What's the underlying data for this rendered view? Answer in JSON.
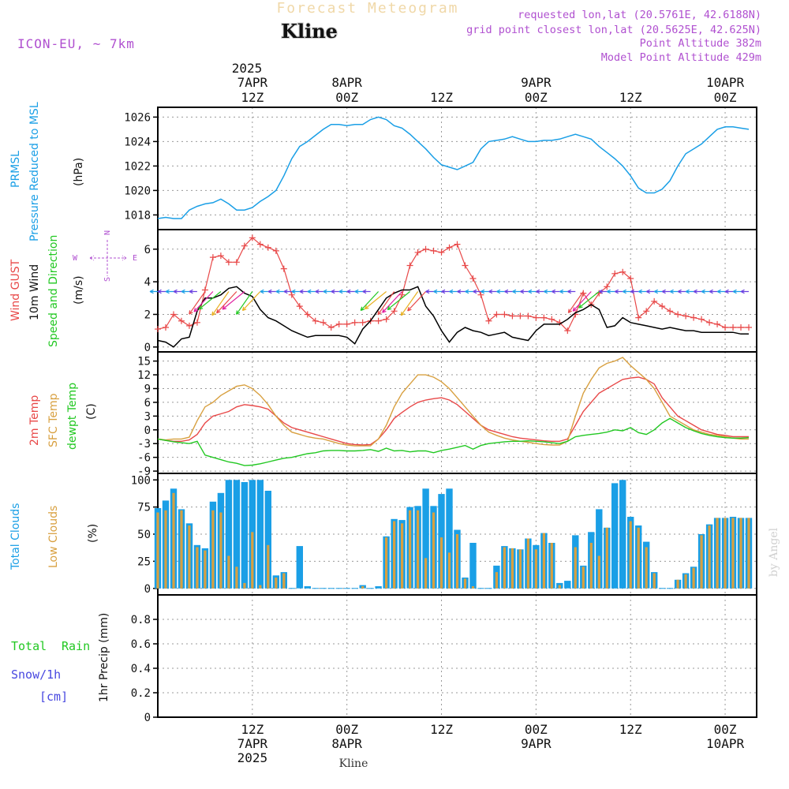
{
  "header": {
    "title": "Forecast Meteogram",
    "location": "Kline",
    "model": "ICON-EU, ~ 7km",
    "requested": "requested lon,lat (20.5761E, 42.6188N)",
    "grid_point": "grid point closest lon,lat (20.5625E, 42.625N)",
    "point_altitude": "Point Altitude 382m",
    "model_altitude": "Model Point Altitude 429m",
    "footer_location": "Kline",
    "watermark": "by Angel"
  },
  "time_axis": {
    "year_label": "2025",
    "top_labels": [
      {
        "hour": 12,
        "day": "7APR",
        "time": "12Z"
      },
      {
        "hour": 24,
        "day": "8APR",
        "time": "00Z"
      },
      {
        "hour": 36,
        "day": "",
        "time": "12Z"
      },
      {
        "hour": 48,
        "day": "9APR",
        "time": "00Z"
      },
      {
        "hour": 60,
        "day": "",
        "time": "12Z"
      },
      {
        "hour": 72,
        "day": "10APR",
        "time": "00Z"
      }
    ],
    "bottom_labels": [
      {
        "hour": 12,
        "time": "12Z",
        "day": "7APR",
        "year": "2025"
      },
      {
        "hour": 24,
        "time": "00Z",
        "day": "8APR",
        "year": ""
      },
      {
        "hour": 36,
        "time": "12Z",
        "day": "",
        "year": ""
      },
      {
        "hour": 48,
        "time": "00Z",
        "day": "9APR",
        "year": ""
      },
      {
        "hour": 60,
        "time": "12Z",
        "day": "",
        "year": ""
      },
      {
        "hour": 72,
        "time": "00Z",
        "day": "10APR",
        "year": ""
      }
    ],
    "xlim": [
      0,
      76
    ]
  },
  "panel_labels": {
    "pressure": {
      "line1": "PRMSL",
      "line2": "Pressure Reduced to MSL",
      "unit": "(hPa)"
    },
    "wind": {
      "line1": "Wind GUST",
      "line2": "10m Wind",
      "line3": "Speed and Direction",
      "unit": "(m/s)",
      "compass_n": "N",
      "compass_s": "S",
      "compass_w": "W",
      "compass_e": "E"
    },
    "temp": {
      "line1": "2m Temp",
      "line2": "SFC Temp",
      "line3": "dewpt Temp",
      "unit": "(C)"
    },
    "clouds": {
      "line1": "Total Clouds",
      "line2": "Low Clouds",
      "unit": "(%)"
    },
    "precip": {
      "total": "Total",
      "rain": "Rain",
      "snow": "Snow/1h",
      "snow_unit": "[cm]",
      "axis": "1hr Precip (mm)"
    }
  },
  "colors": {
    "pressure": "#1a9fe6",
    "gust": "#e84848",
    "wind": "#000000",
    "dir": "#22c822",
    "temp2m": "#e84848",
    "sfc": "#d8a040",
    "dewpt": "#22c822",
    "total_clouds": "#1a9fe6",
    "low_clouds": "#d8a040",
    "title": "#f0d8a8",
    "meta": "#b050d0",
    "snow": "#4848e0"
  },
  "chart_data": [
    {
      "type": "line",
      "title": "PRMSL Pressure Reduced to MSL",
      "ylabel": "(hPa)",
      "ylim": [
        1016.8,
        1026.8
      ],
      "yticks": [
        1018,
        1020,
        1022,
        1024,
        1026
      ],
      "x": [
        0,
        1,
        2,
        3,
        4,
        5,
        6,
        7,
        8,
        9,
        10,
        11,
        12,
        13,
        14,
        15,
        16,
        17,
        18,
        19,
        20,
        21,
        22,
        23,
        24,
        25,
        26,
        27,
        28,
        29,
        30,
        31,
        32,
        33,
        34,
        35,
        36,
        37,
        38,
        39,
        40,
        41,
        42,
        43,
        44,
        45,
        46,
        47,
        48,
        49,
        50,
        51,
        52,
        53,
        54,
        55,
        56,
        57,
        58,
        59,
        60,
        61,
        62,
        63,
        64,
        65,
        66,
        67,
        68,
        69,
        70,
        71,
        72,
        73,
        74,
        75
      ],
      "series": [
        {
          "name": "PRMSL",
          "values": [
            1017.7,
            1017.8,
            1017.7,
            1017.7,
            1018.4,
            1018.7,
            1018.9,
            1019.0,
            1019.3,
            1018.9,
            1018.4,
            1018.4,
            1018.6,
            1019.1,
            1019.5,
            1020.0,
            1021.2,
            1022.6,
            1023.6,
            1024.0,
            1024.5,
            1025.0,
            1025.4,
            1025.4,
            1025.3,
            1025.4,
            1025.4,
            1025.8,
            1026.0,
            1025.8,
            1025.3,
            1025.1,
            1024.6,
            1024.0,
            1023.4,
            1022.7,
            1022.1,
            1021.9,
            1021.7,
            1022.0,
            1022.3,
            1023.4,
            1024.0,
            1024.1,
            1024.2,
            1024.4,
            1024.2,
            1024.0,
            1024.0,
            1024.1,
            1024.1,
            1024.2,
            1024.4,
            1024.6,
            1024.4,
            1024.2,
            1023.6,
            1023.1,
            1022.6,
            1022.0,
            1021.2,
            1020.2,
            1019.8,
            1019.8,
            1020.1,
            1020.8,
            1022.0,
            1023.0,
            1023.4,
            1023.8,
            1024.4,
            1025.0,
            1025.2,
            1025.2,
            1025.1,
            1025.0
          ]
        }
      ]
    },
    {
      "type": "line",
      "title": "Wind GUST / 10m Wind Speed and Direction",
      "ylabel": "(m/s)",
      "ylim": [
        -0.3,
        7.2
      ],
      "yticks": [
        0,
        2,
        4,
        6
      ],
      "x": [
        0,
        1,
        2,
        3,
        4,
        5,
        6,
        7,
        8,
        9,
        10,
        11,
        12,
        13,
        14,
        15,
        16,
        17,
        18,
        19,
        20,
        21,
        22,
        23,
        24,
        25,
        26,
        27,
        28,
        29,
        30,
        31,
        32,
        33,
        34,
        35,
        36,
        37,
        38,
        39,
        40,
        41,
        42,
        43,
        44,
        45,
        46,
        47,
        48,
        49,
        50,
        51,
        52,
        53,
        54,
        55,
        56,
        57,
        58,
        59,
        60,
        61,
        62,
        63,
        64,
        65,
        66,
        67,
        68,
        69,
        70,
        71,
        72,
        73,
        74,
        75
      ],
      "series": [
        {
          "name": "Wind GUST",
          "values": [
            1.1,
            1.2,
            2.0,
            1.6,
            1.3,
            1.5,
            3.5,
            5.5,
            5.6,
            5.2,
            5.2,
            6.2,
            6.7,
            6.3,
            6.1,
            5.9,
            4.8,
            3.2,
            2.5,
            2.0,
            1.6,
            1.5,
            1.2,
            1.4,
            1.4,
            1.5,
            1.5,
            1.6,
            1.6,
            1.7,
            2.2,
            3.2,
            5.0,
            5.8,
            6.0,
            5.9,
            5.8,
            6.1,
            6.3,
            5.0,
            4.2,
            3.2,
            1.6,
            2.0,
            2.0,
            1.9,
            1.9,
            1.9,
            1.8,
            1.8,
            1.7,
            1.5,
            1.0,
            2.0,
            3.3,
            2.6,
            3.3,
            3.7,
            4.5,
            4.6,
            4.2,
            1.8,
            2.2,
            2.8,
            2.5,
            2.2,
            2.0,
            1.9,
            1.8,
            1.7,
            1.5,
            1.4,
            1.2,
            1.2,
            1.2,
            1.2
          ]
        },
        {
          "name": "10m Wind",
          "values": [
            0.4,
            0.3,
            0.0,
            0.5,
            0.6,
            2.2,
            3.0,
            3.0,
            3.2,
            3.6,
            3.7,
            3.3,
            3.1,
            2.3,
            1.8,
            1.6,
            1.3,
            1.0,
            0.8,
            0.6,
            0.7,
            0.7,
            0.7,
            0.7,
            0.6,
            0.2,
            1.1,
            1.6,
            2.3,
            3.0,
            3.3,
            3.5,
            3.5,
            3.7,
            2.5,
            1.9,
            1.0,
            0.3,
            0.9,
            1.2,
            1.0,
            0.9,
            0.7,
            0.8,
            0.9,
            0.6,
            0.5,
            0.4,
            1.0,
            1.4,
            1.4,
            1.4,
            1.7,
            2.1,
            2.3,
            2.6,
            2.3,
            1.2,
            1.3,
            1.8,
            1.5,
            1.4,
            1.3,
            1.2,
            1.1,
            1.2,
            1.1,
            1.0,
            1.0,
            0.9,
            0.9,
            0.9,
            0.9,
            0.9,
            0.8,
            0.8
          ]
        }
      ]
    },
    {
      "type": "line",
      "title": "2m Temp / SFC Temp / dewpt Temp",
      "ylabel": "(C)",
      "ylim": [
        -9.5,
        17
      ],
      "yticks": [
        -9,
        -6,
        -3,
        0,
        3,
        6,
        9,
        12,
        15
      ],
      "x": [
        0,
        1,
        2,
        3,
        4,
        5,
        6,
        7,
        8,
        9,
        10,
        11,
        12,
        13,
        14,
        15,
        16,
        17,
        18,
        19,
        20,
        21,
        22,
        23,
        24,
        25,
        26,
        27,
        28,
        29,
        30,
        31,
        32,
        33,
        34,
        35,
        36,
        37,
        38,
        39,
        40,
        41,
        42,
        43,
        44,
        45,
        46,
        47,
        48,
        49,
        50,
        51,
        52,
        53,
        54,
        55,
        56,
        57,
        58,
        59,
        60,
        61,
        62,
        63,
        64,
        65,
        66,
        67,
        68,
        69,
        70,
        71,
        72,
        73,
        74,
        75
      ],
      "series": [
        {
          "name": "2m Temp",
          "values": [
            -2.0,
            -2.3,
            -2.5,
            -2.5,
            -2.2,
            -1.0,
            1.5,
            3.0,
            3.5,
            4.0,
            5.0,
            5.5,
            5.3,
            5.0,
            4.5,
            3.0,
            1.5,
            0.5,
            0.0,
            -0.5,
            -1.0,
            -1.5,
            -2.0,
            -2.5,
            -3.0,
            -3.2,
            -3.3,
            -3.2,
            -2.0,
            0.0,
            2.5,
            3.8,
            5.0,
            6.0,
            6.5,
            6.8,
            7.0,
            6.5,
            5.5,
            4.0,
            2.5,
            1.0,
            0.0,
            -0.5,
            -1.0,
            -1.5,
            -1.8,
            -2.0,
            -2.2,
            -2.4,
            -2.5,
            -2.5,
            -2.0,
            1.0,
            4.0,
            6.0,
            8.0,
            9.0,
            10.0,
            11.0,
            11.3,
            11.5,
            11.0,
            10.0,
            7.0,
            5.0,
            3.0,
            2.0,
            1.0,
            0.0,
            -0.5,
            -1.0,
            -1.2,
            -1.5,
            -1.5,
            -1.5
          ]
        },
        {
          "name": "SFC Temp",
          "values": [
            -2.0,
            -2.2,
            -2.0,
            -2.0,
            -1.6,
            2.0,
            5.0,
            6.0,
            7.5,
            8.5,
            9.5,
            9.8,
            9.0,
            7.5,
            5.5,
            3.0,
            1.0,
            -0.5,
            -1.0,
            -1.5,
            -1.8,
            -2.0,
            -2.5,
            -3.0,
            -3.3,
            -3.5,
            -3.5,
            -3.5,
            -2.0,
            1.0,
            5.0,
            8.0,
            10.0,
            12.0,
            12.0,
            11.5,
            10.5,
            9.0,
            7.0,
            5.0,
            3.0,
            1.0,
            -0.5,
            -1.2,
            -1.8,
            -2.2,
            -2.5,
            -2.7,
            -3.0,
            -3.2,
            -3.3,
            -3.3,
            -2.5,
            3.0,
            8.0,
            11.0,
            13.5,
            14.5,
            15.0,
            15.8,
            14.0,
            12.5,
            11.0,
            9.0,
            6.0,
            3.0,
            2.0,
            1.0,
            0.0,
            -0.5,
            -1.0,
            -1.2,
            -1.5,
            -1.8,
            -2.0,
            -2.0
          ]
        },
        {
          "name": "dewpt Temp",
          "values": [
            -2.0,
            -2.3,
            -2.6,
            -2.8,
            -3.0,
            -2.5,
            -5.5,
            -6.0,
            -6.5,
            -7.0,
            -7.3,
            -7.8,
            -7.7,
            -7.4,
            -7.0,
            -6.6,
            -6.2,
            -6.0,
            -5.6,
            -5.2,
            -5.0,
            -4.6,
            -4.5,
            -4.5,
            -4.6,
            -4.6,
            -4.5,
            -4.3,
            -4.7,
            -4.0,
            -4.6,
            -4.5,
            -4.8,
            -4.6,
            -4.6,
            -5.0,
            -4.5,
            -4.2,
            -3.8,
            -3.4,
            -4.2,
            -3.4,
            -3.0,
            -2.8,
            -2.6,
            -2.5,
            -2.5,
            -2.4,
            -2.5,
            -2.6,
            -2.8,
            -3.0,
            -2.5,
            -1.5,
            -1.2,
            -1.0,
            -0.8,
            -0.5,
            0.0,
            -0.2,
            0.5,
            -0.6,
            -1.0,
            0.0,
            1.5,
            2.5,
            1.5,
            0.5,
            -0.2,
            -0.8,
            -1.2,
            -1.5,
            -1.7,
            -1.8,
            -1.8,
            -1.7
          ]
        }
      ]
    },
    {
      "type": "bar",
      "title": "Total Clouds / Low Clouds",
      "ylabel": "(%)",
      "ylim": [
        -6,
        106
      ],
      "yticks": [
        0,
        25,
        50,
        75,
        100
      ],
      "x": [
        0,
        1,
        2,
        3,
        4,
        5,
        6,
        7,
        8,
        9,
        10,
        11,
        12,
        13,
        14,
        15,
        16,
        17,
        18,
        19,
        20,
        21,
        22,
        23,
        24,
        25,
        26,
        27,
        28,
        29,
        30,
        31,
        32,
        33,
        34,
        35,
        36,
        37,
        38,
        39,
        40,
        41,
        42,
        43,
        44,
        45,
        46,
        47,
        48,
        49,
        50,
        51,
        52,
        53,
        54,
        55,
        56,
        57,
        58,
        59,
        60,
        61,
        62,
        63,
        64,
        65,
        66,
        67,
        68,
        69,
        70,
        71,
        72,
        73,
        74,
        75
      ],
      "series": [
        {
          "name": "Total Clouds",
          "values": [
            74,
            81,
            92,
            73,
            60,
            40,
            37,
            80,
            88,
            100,
            100,
            98,
            100,
            100,
            90,
            12,
            15,
            0,
            39,
            2,
            0,
            0,
            0,
            0,
            0,
            0,
            3,
            0,
            2,
            48,
            64,
            63,
            75,
            76,
            92,
            76,
            87,
            92,
            54,
            10,
            42,
            0,
            0,
            21,
            39,
            37,
            36,
            46,
            40,
            51,
            42,
            5,
            7,
            49,
            21,
            52,
            73,
            56,
            97,
            100,
            66,
            58,
            43,
            15,
            0,
            0,
            8,
            14,
            20,
            50,
            59,
            65,
            65,
            66,
            65,
            65
          ]
        },
        {
          "name": "Low Clouds",
          "values": [
            70,
            72,
            88,
            72,
            58,
            38,
            35,
            72,
            70,
            30,
            20,
            5,
            52,
            3,
            40,
            10,
            14,
            0,
            0,
            0,
            0,
            0,
            0,
            0,
            0,
            0,
            2,
            0,
            0,
            47,
            62,
            60,
            72,
            72,
            28,
            70,
            47,
            33,
            50,
            9,
            2,
            0,
            0,
            15,
            38,
            37,
            36,
            46,
            36,
            51,
            42,
            3,
            0,
            38,
            20,
            42,
            30,
            56,
            0,
            0,
            62,
            56,
            38,
            14,
            0,
            0,
            8,
            13,
            19,
            49,
            58,
            65,
            65,
            65,
            65,
            65
          ]
        }
      ]
    },
    {
      "type": "bar",
      "title": "Total Rain / Snow/1h",
      "ylabel": "1hr Precip (mm)",
      "ylim": [
        0,
        1
      ],
      "yticks": [
        0,
        0.2,
        0.4,
        0.6,
        0.8
      ],
      "x": [
        0,
        75
      ],
      "series": [
        {
          "name": "Total Rain",
          "values": [
            0,
            0
          ]
        },
        {
          "name": "Snow/1h",
          "values": [
            0,
            0
          ]
        }
      ]
    }
  ]
}
